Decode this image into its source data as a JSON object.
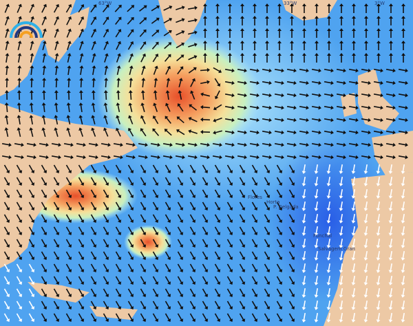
{
  "map": {
    "colors": {
      "ocean_low": "#3b7ff0",
      "ocean_mid": "#5cb2f5",
      "ocean_light": "#aee4fb",
      "green": "#c8f0c0",
      "yellow": "#f5e09a",
      "orange": "#f5a060",
      "red": "#e8502a",
      "land": "#edc9a5",
      "deep": "#1030e0"
    },
    "graticule": [
      "63°W",
      "33°W",
      "3°W"
    ],
    "places": [
      "Flores",
      "Horta",
      "P. Delgada",
      "Funchal",
      "Salvagem Gran"
    ],
    "logo": "swell-wave-logo"
  }
}
